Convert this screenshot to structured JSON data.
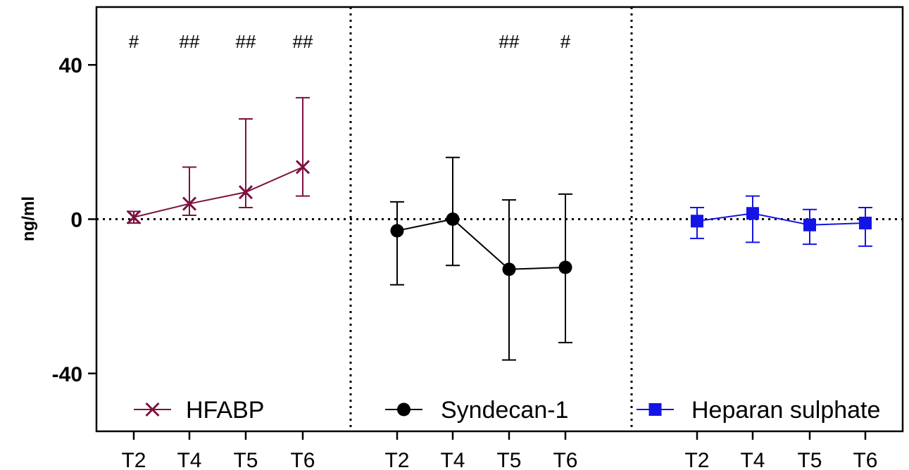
{
  "chart_data": {
    "type": "line",
    "ylabel": "ng/ml",
    "ylim": [
      -55,
      55
    ],
    "yticks": [
      {
        "value": 40,
        "label": "40"
      },
      {
        "value": 0,
        "label": "0"
      },
      {
        "value": -40,
        "label": "-40"
      }
    ],
    "reference_line": 0,
    "panels": [
      {
        "legend": "HFABP",
        "color": "#7d1140",
        "marker": "x",
        "categories": [
          "T2",
          "T4",
          "T5",
          "T6"
        ],
        "values": [
          0.5,
          4,
          7,
          13.5
        ],
        "err_low": [
          -1,
          1,
          3,
          6
        ],
        "err_high": [
          2,
          13.5,
          26,
          31.5
        ],
        "significance": [
          "#",
          "##",
          "##",
          "##"
        ]
      },
      {
        "legend": "Syndecan-1",
        "color": "#000000",
        "marker": "circle",
        "categories": [
          "T2",
          "T4",
          "T5",
          "T6"
        ],
        "values": [
          -3,
          0,
          -13,
          -12.5
        ],
        "err_low": [
          -17,
          -12,
          -36.5,
          -32
        ],
        "err_high": [
          4.5,
          16,
          5,
          6.5
        ],
        "significance": [
          "",
          "",
          "##",
          "#"
        ]
      },
      {
        "legend": "Heparan sulphate",
        "color": "#1414e6",
        "marker": "square",
        "categories": [
          "T2",
          "T4",
          "T5",
          "T6"
        ],
        "values": [
          -0.5,
          1.5,
          -1.5,
          -1
        ],
        "err_low": [
          -5,
          -6,
          -6.5,
          -7
        ],
        "err_high": [
          3,
          6,
          2.5,
          3
        ],
        "significance": [
          "",
          "",
          "",
          ""
        ]
      }
    ]
  }
}
